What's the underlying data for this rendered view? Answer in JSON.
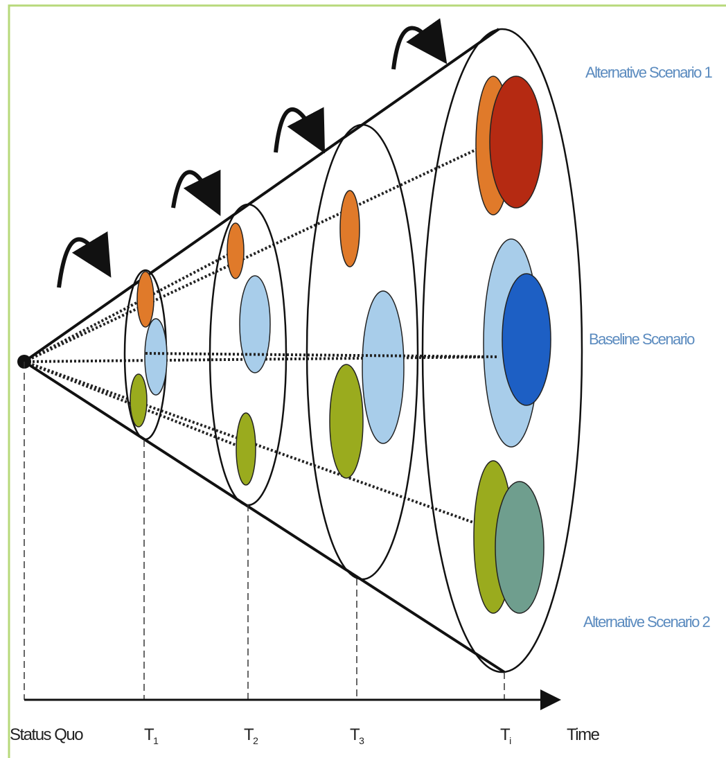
{
  "scenarios": [
    "Alternative Scenario 1",
    "Baseline Scenario",
    "Alternative Scenario 2"
  ],
  "axis": {
    "origin": "Status Quo",
    "times": [
      {
        "base": "T",
        "sub": "1"
      },
      {
        "base": "T",
        "sub": "2"
      },
      {
        "base": "T",
        "sub": "3"
      },
      {
        "base": "T",
        "sub": "i"
      }
    ],
    "label": "Time"
  }
}
